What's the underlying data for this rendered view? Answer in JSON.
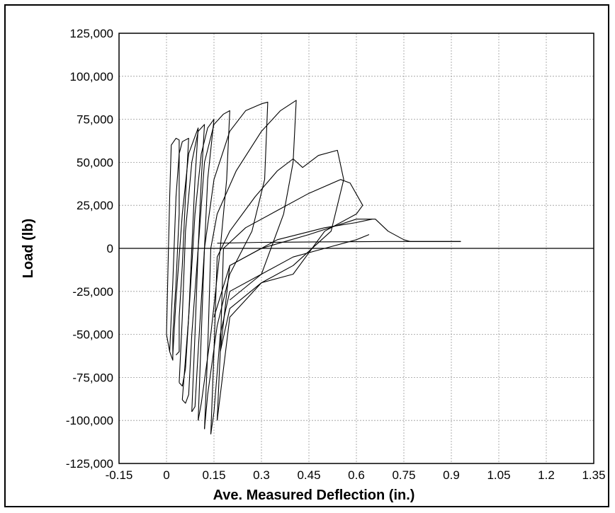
{
  "chart_data": {
    "type": "line",
    "title": "",
    "xlabel": "Ave. Measured Deflection (in.)",
    "ylabel": "Load (lb)",
    "xlim": [
      -0.15,
      1.35
    ],
    "ylim": [
      -125000,
      125000
    ],
    "x_ticks": [
      -0.15,
      0,
      0.15,
      0.3,
      0.45,
      0.6,
      0.75,
      0.9,
      1.05,
      1.2,
      1.35
    ],
    "x_tick_labels": [
      "-0.15",
      "0",
      "0.15",
      "0.3",
      "0.45",
      "0.6",
      "0.75",
      "0.9",
      "1.05",
      "1.2",
      "1.35"
    ],
    "y_ticks": [
      125000,
      100000,
      75000,
      50000,
      25000,
      0,
      -25000,
      -50000,
      -75000,
      -100000,
      -125000
    ],
    "y_tick_labels": [
      "125,000",
      "100,000",
      "75,000",
      "50,000",
      "25,000",
      "0",
      "-25,000",
      "-50,000",
      "-75,000",
      "-100,000",
      "-125,000"
    ],
    "grid": true,
    "legend": "none",
    "series_color": "#000000",
    "series": [
      {
        "points": [
          [
            0,
            -50000
          ],
          [
            0.005,
            -10000
          ],
          [
            0.01,
            30000
          ],
          [
            0.015,
            60000
          ],
          [
            0.03,
            64000
          ],
          [
            0.04,
            63000
          ],
          [
            0.04,
            20000
          ],
          [
            0.03,
            -20000
          ],
          [
            0.02,
            -50000
          ],
          [
            0.02,
            -65000
          ],
          [
            0.01,
            -60000
          ],
          [
            0.0,
            -50000
          ]
        ]
      },
      {
        "points": [
          [
            0.01,
            -60000
          ],
          [
            0.02,
            -20000
          ],
          [
            0.03,
            30000
          ],
          [
            0.04,
            55000
          ],
          [
            0.05,
            62000
          ],
          [
            0.07,
            64000
          ],
          [
            0.06,
            30000
          ],
          [
            0.05,
            -10000
          ],
          [
            0.04,
            -40000
          ],
          [
            0.04,
            -60000
          ],
          [
            0.03,
            -62000
          ]
        ]
      },
      {
        "points": [
          [
            0.02,
            -62000
          ],
          [
            0.03,
            -30000
          ],
          [
            0.05,
            20000
          ],
          [
            0.07,
            55000
          ],
          [
            0.09,
            65000
          ],
          [
            0.1,
            70000
          ],
          [
            0.09,
            40000
          ],
          [
            0.08,
            0
          ],
          [
            0.07,
            -40000
          ],
          [
            0.06,
            -70000
          ],
          [
            0.05,
            -80000
          ],
          [
            0.04,
            -78000
          ]
        ]
      },
      {
        "points": [
          [
            0.04,
            -78000
          ],
          [
            0.05,
            -40000
          ],
          [
            0.06,
            10000
          ],
          [
            0.08,
            50000
          ],
          [
            0.1,
            68000
          ],
          [
            0.12,
            72000
          ],
          [
            0.11,
            40000
          ],
          [
            0.1,
            0
          ],
          [
            0.08,
            -50000
          ],
          [
            0.07,
            -85000
          ],
          [
            0.06,
            -90000
          ],
          [
            0.05,
            -88000
          ]
        ]
      },
      {
        "points": [
          [
            0.05,
            -88000
          ],
          [
            0.07,
            -40000
          ],
          [
            0.09,
            20000
          ],
          [
            0.11,
            55000
          ],
          [
            0.13,
            70000
          ],
          [
            0.15,
            75000
          ],
          [
            0.13,
            40000
          ],
          [
            0.12,
            0
          ],
          [
            0.1,
            -60000
          ],
          [
            0.09,
            -92000
          ],
          [
            0.08,
            -95000
          ]
        ]
      },
      {
        "points": [
          [
            0.08,
            -95000
          ],
          [
            0.09,
            -50000
          ],
          [
            0.1,
            0
          ],
          [
            0.12,
            50000
          ],
          [
            0.15,
            72000
          ],
          [
            0.18,
            78000
          ],
          [
            0.2,
            80000
          ],
          [
            0.19,
            40000
          ],
          [
            0.17,
            0
          ],
          [
            0.14,
            -50000
          ],
          [
            0.11,
            -90000
          ],
          [
            0.1,
            -100000
          ]
        ]
      },
      {
        "points": [
          [
            0.1,
            -100000
          ],
          [
            0.11,
            -50000
          ],
          [
            0.12,
            0
          ],
          [
            0.15,
            40000
          ],
          [
            0.2,
            68000
          ],
          [
            0.25,
            80000
          ],
          [
            0.3,
            84000
          ],
          [
            0.32,
            85000
          ],
          [
            0.31,
            40000
          ],
          [
            0.27,
            10000
          ],
          [
            0.2,
            -15000
          ],
          [
            0.16,
            -45000
          ],
          [
            0.13,
            -85000
          ],
          [
            0.12,
            -105000
          ]
        ]
      },
      {
        "points": [
          [
            0.12,
            -105000
          ],
          [
            0.13,
            -60000
          ],
          [
            0.14,
            0
          ],
          [
            0.16,
            20000
          ],
          [
            0.22,
            45000
          ],
          [
            0.3,
            68000
          ],
          [
            0.36,
            80000
          ],
          [
            0.41,
            86000
          ],
          [
            0.4,
            50000
          ],
          [
            0.37,
            20000
          ],
          [
            0.3,
            -15000
          ],
          [
            0.2,
            -25000
          ],
          [
            0.17,
            -50000
          ],
          [
            0.15,
            -95000
          ],
          [
            0.14,
            -108000
          ]
        ]
      },
      {
        "points": [
          [
            0.14,
            -108000
          ],
          [
            0.15,
            -60000
          ],
          [
            0.16,
            -5000
          ],
          [
            0.2,
            10000
          ],
          [
            0.28,
            30000
          ],
          [
            0.35,
            45000
          ],
          [
            0.4,
            52000
          ],
          [
            0.43,
            47000
          ],
          [
            0.48,
            54000
          ],
          [
            0.54,
            57000
          ],
          [
            0.56,
            40000
          ],
          [
            0.52,
            10000
          ],
          [
            0.4,
            -10000
          ],
          [
            0.3,
            -20000
          ],
          [
            0.2,
            -40000
          ],
          [
            0.16,
            -100000
          ]
        ]
      },
      {
        "points": [
          [
            0.16,
            -100000
          ],
          [
            0.17,
            -60000
          ],
          [
            0.18,
            0
          ],
          [
            0.25,
            12000
          ],
          [
            0.35,
            22000
          ],
          [
            0.45,
            32000
          ],
          [
            0.55,
            40000
          ],
          [
            0.58,
            38000
          ],
          [
            0.62,
            25000
          ],
          [
            0.6,
            20000
          ],
          [
            0.5,
            10000
          ],
          [
            0.4,
            -15000
          ],
          [
            0.3,
            -20000
          ],
          [
            0.2,
            -35000
          ],
          [
            0.17,
            -60000
          ]
        ]
      },
      {
        "points": [
          [
            0.17,
            -60000
          ],
          [
            0.2,
            -10000
          ],
          [
            0.3,
            0
          ],
          [
            0.45,
            8000
          ],
          [
            0.6,
            17000
          ],
          [
            0.66,
            17000
          ],
          [
            0.7,
            10000
          ],
          [
            0.75,
            5000
          ],
          [
            0.77,
            4000
          ],
          [
            0.93,
            4000
          ]
        ]
      },
      {
        "points": [
          [
            0.15,
            -40000
          ],
          [
            0.2,
            -10000
          ],
          [
            0.35,
            5000
          ],
          [
            0.5,
            12000
          ],
          [
            0.6,
            15000
          ],
          [
            0.65,
            17000
          ]
        ]
      },
      {
        "points": [
          [
            0.2,
            -30000
          ],
          [
            0.3,
            -15000
          ],
          [
            0.4,
            -5000
          ],
          [
            0.5,
            0
          ],
          [
            0.6,
            5000
          ],
          [
            0.64,
            8000
          ]
        ]
      },
      {
        "points": [
          [
            0.16,
            3000
          ],
          [
            0.3,
            3500
          ],
          [
            0.5,
            3800
          ],
          [
            0.7,
            4000
          ],
          [
            0.93,
            4000
          ]
        ]
      }
    ]
  }
}
